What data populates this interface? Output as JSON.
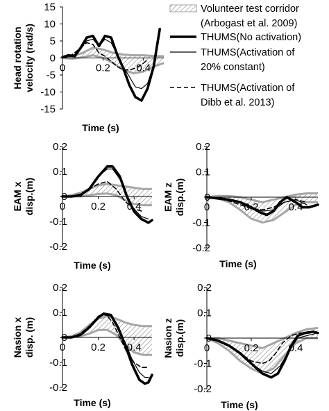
{
  "legend": {
    "entries": [
      {
        "key": "corridor",
        "lines": [
          "Volunteer test corridor",
          "(Arbogast et al. 2009)"
        ]
      },
      {
        "key": "no_act",
        "lines": [
          "THUMS(No activation)"
        ]
      },
      {
        "key": "act20",
        "lines": [
          "THUMS(Activation of",
          "20% constant)"
        ]
      },
      {
        "key": "dibb",
        "lines": [
          "THUMS(Activation of",
          "Dibb et al. 2013)"
        ]
      }
    ]
  },
  "colors": {
    "corridor": "#a6a6a6",
    "hatch": "#8c8c8c",
    "no_act": "#000000",
    "act20": "#000000",
    "dibb": "#000000"
  },
  "chart_data": [
    {
      "type": "line",
      "ylabel_lines": [
        "Head rotation",
        "velocity (rad/s)"
      ],
      "xlabel": "Time (s)",
      "xlim": [
        0,
        0.5
      ],
      "ylim": [
        -15,
        15
      ],
      "yticks": [
        "15",
        "10",
        "5",
        "0",
        "-5",
        "-10",
        "-15"
      ],
      "ytick_values": [
        15,
        10,
        5,
        0,
        -5,
        -10,
        -15
      ],
      "xticks": [
        "0",
        "0.2",
        "0.4"
      ],
      "xtick_values": [
        0,
        0.2,
        0.4
      ],
      "corridor_upper": {
        "x": [
          0.0,
          0.05,
          0.1,
          0.15,
          0.2,
          0.25,
          0.3,
          0.35,
          0.4,
          0.45,
          0.5
        ],
        "y": [
          0.3,
          0.5,
          1.5,
          3.0,
          2.5,
          1.5,
          1.0,
          0.8,
          0.8,
          0.6,
          0.5
        ]
      },
      "corridor_lower": {
        "x": [
          0.0,
          0.05,
          0.1,
          0.15,
          0.2,
          0.25,
          0.3,
          0.35,
          0.4,
          0.45,
          0.5
        ],
        "y": [
          0.0,
          -0.2,
          0.2,
          0.8,
          0.0,
          -1.5,
          -3.5,
          -4.5,
          -4.0,
          -2.5,
          -1.5
        ]
      },
      "series": [
        {
          "key": "no_act",
          "x": [
            0.0,
            0.03,
            0.06,
            0.09,
            0.12,
            0.15,
            0.18,
            0.21,
            0.24,
            0.27,
            0.3,
            0.33,
            0.36,
            0.39,
            0.42,
            0.45,
            0.48
          ],
          "y": [
            0.2,
            0.8,
            0.5,
            3.0,
            6.0,
            6.5,
            3.5,
            6.5,
            6.0,
            1.0,
            -3.0,
            -8.0,
            -11.5,
            -12.5,
            -9.0,
            -2.5,
            8.5
          ]
        },
        {
          "key": "act20",
          "x": [
            0.0,
            0.03,
            0.06,
            0.09,
            0.12,
            0.15,
            0.18,
            0.21,
            0.24,
            0.27,
            0.3,
            0.33,
            0.36,
            0.39,
            0.42,
            0.45
          ],
          "y": [
            0.0,
            0.5,
            1.0,
            3.0,
            5.0,
            5.5,
            3.5,
            5.5,
            4.5,
            1.0,
            -2.5,
            -5.5,
            -8.5,
            -9.0,
            -7.5,
            -2.0
          ]
        },
        {
          "key": "dibb",
          "x": [
            0.0,
            0.03,
            0.06,
            0.09,
            0.12,
            0.15,
            0.18,
            0.21,
            0.24,
            0.27,
            0.3,
            0.33,
            0.36,
            0.39,
            0.42
          ],
          "y": [
            0.0,
            0.3,
            1.5,
            3.0,
            4.5,
            4.0,
            1.5,
            0.5,
            -1.0,
            -2.5,
            -3.5,
            -3.5,
            -3.0,
            -2.0,
            -0.5
          ]
        }
      ]
    },
    {
      "type": "line",
      "ylabel_lines": [
        "EAM x",
        "disp.(m)"
      ],
      "xlabel": "Time (s)",
      "xlim": [
        0,
        0.5
      ],
      "ylim": [
        -0.2,
        0.2
      ],
      "yticks": [
        "0.2",
        "0.1",
        "0",
        "-0.1",
        "-0.2"
      ],
      "ytick_values": [
        0.2,
        0.1,
        0,
        -0.1,
        -0.2
      ],
      "xticks": [
        "0",
        "0.2",
        "0.4"
      ],
      "xtick_values": [
        0,
        0.2,
        0.4
      ],
      "corridor_upper": {
        "x": [
          0.0,
          0.05,
          0.1,
          0.15,
          0.2,
          0.25,
          0.3,
          0.35,
          0.4,
          0.45,
          0.5
        ],
        "y": [
          0.0,
          0.005,
          0.015,
          0.03,
          0.045,
          0.05,
          0.045,
          0.04,
          0.035,
          0.03,
          0.03
        ]
      },
      "corridor_lower": {
        "x": [
          0.0,
          0.05,
          0.1,
          0.15,
          0.2,
          0.25,
          0.3,
          0.35,
          0.4,
          0.45,
          0.5
        ],
        "y": [
          0.0,
          0.0,
          0.0,
          0.005,
          0.01,
          0.012,
          0.005,
          -0.015,
          -0.03,
          -0.035,
          -0.035
        ]
      },
      "series": [
        {
          "key": "no_act",
          "x": [
            0.0,
            0.05,
            0.1,
            0.15,
            0.2,
            0.25,
            0.28,
            0.32,
            0.36,
            0.4,
            0.44,
            0.48,
            0.5
          ],
          "y": [
            0.0,
            0.0,
            0.005,
            0.03,
            0.08,
            0.12,
            0.12,
            0.08,
            0.0,
            -0.06,
            -0.09,
            -0.105,
            -0.095
          ]
        },
        {
          "key": "act20",
          "x": [
            0.0,
            0.05,
            0.1,
            0.15,
            0.2,
            0.25,
            0.28,
            0.32,
            0.36,
            0.4,
            0.44,
            0.48
          ],
          "y": [
            0.0,
            0.0,
            0.005,
            0.03,
            0.08,
            0.11,
            0.11,
            0.07,
            0.0,
            -0.05,
            -0.08,
            -0.09
          ]
        },
        {
          "key": "dibb",
          "x": [
            0.0,
            0.05,
            0.1,
            0.15,
            0.2,
            0.25,
            0.3,
            0.35,
            0.4,
            0.45
          ],
          "y": [
            0.0,
            0.0,
            0.01,
            0.03,
            0.05,
            0.06,
            0.03,
            -0.02,
            -0.05,
            -0.06
          ]
        }
      ]
    },
    {
      "type": "line",
      "ylabel_lines": [
        "EAM z",
        "disp.(m)"
      ],
      "xlabel": "Time (s)",
      "xlim": [
        0,
        0.5
      ],
      "ylim": [
        -0.2,
        0.2
      ],
      "yticks": [
        "0.2",
        "0.1",
        "0",
        "-0.1",
        "-0.2"
      ],
      "ytick_values": [
        0.2,
        0.1,
        0,
        -0.1,
        -0.2
      ],
      "xticks": [
        "0",
        "0.2",
        "0.4"
      ],
      "xtick_values": [
        0,
        0.2,
        0.4
      ],
      "corridor_upper": {
        "x": [
          0.0,
          0.05,
          0.1,
          0.15,
          0.2,
          0.25,
          0.3,
          0.35,
          0.4,
          0.45,
          0.5
        ],
        "y": [
          0.0,
          0.005,
          0.005,
          0.0,
          -0.01,
          -0.02,
          -0.01,
          0.0,
          0.01,
          0.015,
          0.015
        ]
      },
      "corridor_lower": {
        "x": [
          0.0,
          0.05,
          0.1,
          0.15,
          0.2,
          0.25,
          0.3,
          0.35,
          0.4,
          0.45,
          0.5
        ],
        "y": [
          0.0,
          -0.005,
          -0.02,
          -0.05,
          -0.085,
          -0.1,
          -0.09,
          -0.06,
          -0.03,
          -0.02,
          -0.02
        ]
      },
      "series": [
        {
          "key": "no_act",
          "x": [
            0.0,
            0.05,
            0.1,
            0.15,
            0.2,
            0.24,
            0.27,
            0.3,
            0.33,
            0.36,
            0.4,
            0.43,
            0.46,
            0.5
          ],
          "y": [
            0.0,
            -0.005,
            -0.01,
            -0.02,
            -0.04,
            -0.06,
            -0.07,
            -0.055,
            -0.02,
            0.0,
            -0.02,
            -0.04,
            -0.04,
            -0.03
          ]
        },
        {
          "key": "act20",
          "x": [
            0.0,
            0.05,
            0.1,
            0.15,
            0.2,
            0.25,
            0.3,
            0.35,
            0.4,
            0.45
          ],
          "y": [
            0.0,
            -0.005,
            -0.01,
            -0.02,
            -0.04,
            -0.055,
            -0.05,
            -0.02,
            -0.01,
            -0.03
          ]
        },
        {
          "key": "dibb",
          "x": [
            0.0,
            0.05,
            0.1,
            0.15,
            0.2,
            0.25,
            0.3,
            0.35,
            0.4,
            0.45
          ],
          "y": [
            0.0,
            -0.005,
            -0.015,
            -0.03,
            -0.045,
            -0.05,
            -0.04,
            -0.02,
            -0.01,
            -0.02
          ]
        }
      ]
    },
    {
      "type": "line",
      "ylabel_lines": [
        "Nasion x",
        "disp. (m)"
      ],
      "xlabel": "Time (s)",
      "xlim": [
        0,
        0.5
      ],
      "ylim": [
        -0.2,
        0.2
      ],
      "yticks": [
        "0.2",
        "0.1",
        "0",
        "-0.1",
        "-0.2"
      ],
      "ytick_values": [
        0.2,
        0.1,
        0,
        -0.1,
        -0.2
      ],
      "xticks": [
        "0",
        "0.2",
        "0.4"
      ],
      "xtick_values": [
        0,
        0.2,
        0.4
      ],
      "corridor_upper": {
        "x": [
          0.0,
          0.05,
          0.1,
          0.15,
          0.2,
          0.25,
          0.3,
          0.35,
          0.4,
          0.45,
          0.5
        ],
        "y": [
          0.0,
          0.005,
          0.02,
          0.05,
          0.075,
          0.085,
          0.075,
          0.06,
          0.05,
          0.045,
          0.045
        ]
      },
      "corridor_lower": {
        "x": [
          0.0,
          0.05,
          0.1,
          0.15,
          0.2,
          0.25,
          0.3,
          0.35,
          0.4,
          0.45,
          0.5
        ],
        "y": [
          0.0,
          0.0,
          0.005,
          0.015,
          0.03,
          0.03,
          0.01,
          -0.03,
          -0.06,
          -0.07,
          -0.07
        ]
      },
      "series": [
        {
          "key": "no_act",
          "x": [
            0.0,
            0.05,
            0.1,
            0.15,
            0.2,
            0.23,
            0.27,
            0.31,
            0.35,
            0.39,
            0.43,
            0.46,
            0.48,
            0.5
          ],
          "y": [
            0.0,
            0.0,
            0.01,
            0.04,
            0.08,
            0.095,
            0.09,
            0.04,
            -0.03,
            -0.11,
            -0.17,
            -0.185,
            -0.18,
            -0.15
          ]
        },
        {
          "key": "act20",
          "x": [
            0.0,
            0.05,
            0.1,
            0.15,
            0.2,
            0.23,
            0.27,
            0.31,
            0.35,
            0.39,
            0.43,
            0.46,
            0.48
          ],
          "y": [
            0.0,
            0.0,
            0.01,
            0.04,
            0.08,
            0.09,
            0.085,
            0.04,
            -0.02,
            -0.09,
            -0.14,
            -0.16,
            -0.16
          ]
        },
        {
          "key": "dibb",
          "x": [
            0.0,
            0.05,
            0.1,
            0.15,
            0.2,
            0.24,
            0.28,
            0.32,
            0.36,
            0.4,
            0.44,
            0.48
          ],
          "y": [
            0.0,
            0.0,
            0.015,
            0.045,
            0.085,
            0.095,
            0.06,
            0.0,
            -0.06,
            -0.1,
            -0.12,
            -0.12
          ]
        }
      ]
    },
    {
      "type": "line",
      "ylabel_lines": [
        "Nasion z",
        "disp.(m)"
      ],
      "xlabel": "Time (s)",
      "xlim": [
        0,
        0.5
      ],
      "ylim": [
        -0.2,
        0.2
      ],
      "yticks": [
        "0.2",
        "0.1",
        "0",
        "-0.1",
        "-0.2"
      ],
      "ytick_values": [
        0.2,
        0.1,
        0,
        -0.1,
        -0.2
      ],
      "xticks": [
        "0",
        "0.2",
        "0.4"
      ],
      "xtick_values": [
        0,
        0.2,
        0.4
      ],
      "corridor_upper": {
        "x": [
          0.0,
          0.05,
          0.1,
          0.15,
          0.2,
          0.25,
          0.3,
          0.35,
          0.4,
          0.45,
          0.5
        ],
        "y": [
          0.0,
          0.0,
          -0.01,
          -0.02,
          -0.03,
          -0.04,
          -0.02,
          0.0,
          0.02,
          0.035,
          0.04
        ]
      },
      "corridor_lower": {
        "x": [
          0.0,
          0.05,
          0.1,
          0.15,
          0.2,
          0.25,
          0.3,
          0.35,
          0.4,
          0.45,
          0.5
        ],
        "y": [
          0.0,
          -0.02,
          -0.05,
          -0.09,
          -0.12,
          -0.14,
          -0.12,
          -0.07,
          -0.02,
          0.0,
          0.0
        ]
      },
      "series": [
        {
          "key": "no_act",
          "x": [
            0.0,
            0.05,
            0.1,
            0.15,
            0.2,
            0.25,
            0.29,
            0.32,
            0.35,
            0.38,
            0.41,
            0.44,
            0.48,
            0.5
          ],
          "y": [
            0.0,
            -0.01,
            -0.03,
            -0.06,
            -0.1,
            -0.14,
            -0.155,
            -0.14,
            -0.09,
            -0.03,
            0.01,
            0.02,
            0.025,
            0.02
          ]
        },
        {
          "key": "act20",
          "x": [
            0.0,
            0.05,
            0.1,
            0.15,
            0.2,
            0.25,
            0.29,
            0.33,
            0.37,
            0.41,
            0.45,
            0.5
          ],
          "y": [
            0.0,
            -0.01,
            -0.03,
            -0.06,
            -0.1,
            -0.13,
            -0.14,
            -0.11,
            -0.05,
            0.0,
            0.01,
            0.02
          ]
        },
        {
          "key": "dibb",
          "x": [
            0.0,
            0.05,
            0.1,
            0.15,
            0.2,
            0.25,
            0.28,
            0.31,
            0.34,
            0.38,
            0.42,
            0.46
          ],
          "y": [
            0.0,
            -0.01,
            -0.03,
            -0.06,
            -0.09,
            -0.1,
            -0.09,
            -0.06,
            -0.02,
            0.01,
            0.02,
            0.02
          ]
        }
      ]
    }
  ]
}
